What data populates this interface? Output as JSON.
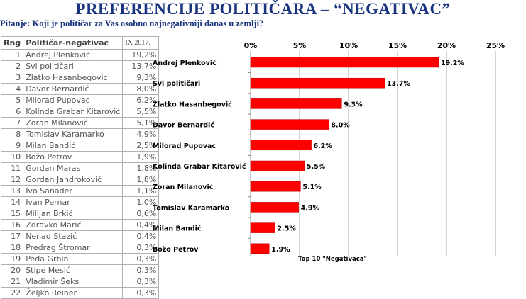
{
  "title": "PREFERENCIJE POLITIČARA – “NEGATIVAC”",
  "question": "Pitanje: Koji je političar za Vas osobno najnegativniji danas u zemlji?",
  "table": {
    "headers": [
      "Rng",
      "Političar-negativac",
      "IX 2017."
    ],
    "rows": [
      [
        "1",
        "Andrej Plenković",
        "19,2%"
      ],
      [
        "2",
        "Svi političari",
        "13,7%"
      ],
      [
        "3",
        "Zlatko Hasanbegović",
        "9,3%"
      ],
      [
        "4",
        "Davor Bernardić",
        "8,0%"
      ],
      [
        "5",
        "Milorad Pupovac",
        "6,2%"
      ],
      [
        "6",
        "Kolinda Grabar Kitarović",
        "5,5%"
      ],
      [
        "7",
        "Zoran Milanović",
        "5,1%"
      ],
      [
        "8",
        "Tomislav Karamarko",
        "4,9%"
      ],
      [
        "9",
        "Milan Bandić",
        "2,5%"
      ],
      [
        "10",
        "Božo Petrov",
        "1,9%"
      ],
      [
        "11",
        "Gordan Maras",
        "1,8%"
      ],
      [
        "12",
        "Gordan Jandroković",
        "1,8%"
      ],
      [
        "13",
        "Ivo Sanader",
        "1,1%"
      ],
      [
        "14",
        "Ivan Pernar",
        "1,0%"
      ],
      [
        "15",
        "Milijan Brkić",
        "0,6%"
      ],
      [
        "16",
        "Zdravko Marić",
        "0,4%"
      ],
      [
        "17",
        "Nenad Stazić",
        "0,4%"
      ],
      [
        "18",
        "Predrag Štromar",
        "0,3%"
      ],
      [
        "19",
        "Peđa Grbin",
        "0,3%"
      ],
      [
        "20",
        "Stipe Mesić",
        "0,3%"
      ],
      [
        "21",
        "Vladimir Šeks",
        "0,3%"
      ],
      [
        "22",
        "Željko Reiner",
        "0,3%"
      ]
    ]
  },
  "chart_data": {
    "type": "bar",
    "orientation": "horizontal",
    "title": "Top 10 \"Negativaca\"",
    "categories": [
      "Andrej Plenković",
      "Svi političari",
      "Zlatko Hasanbegović",
      "Davor Bernardić",
      "Milorad Pupovac",
      "Kolinda Grabar Kitarović",
      "Zoran Milanović",
      "Tomislav Karamarko",
      "Milan Bandić",
      "Božo Petrov"
    ],
    "values": [
      19.2,
      13.7,
      9.3,
      8.0,
      6.2,
      5.5,
      5.1,
      4.9,
      2.5,
      1.9
    ],
    "value_labels": [
      "19.2%",
      "13.7%",
      "9.3%",
      "8.0%",
      "6.2%",
      "5.5%",
      "5.1%",
      "4.9%",
      "2.5%",
      "1.9%"
    ],
    "xticks": [
      0,
      5,
      10,
      15,
      20,
      25
    ],
    "xtick_labels": [
      "0%",
      "5%",
      "10%",
      "15%",
      "20%",
      "25%"
    ],
    "xlim": [
      0,
      25
    ],
    "grid": true,
    "bar_color": "#ff0000"
  }
}
